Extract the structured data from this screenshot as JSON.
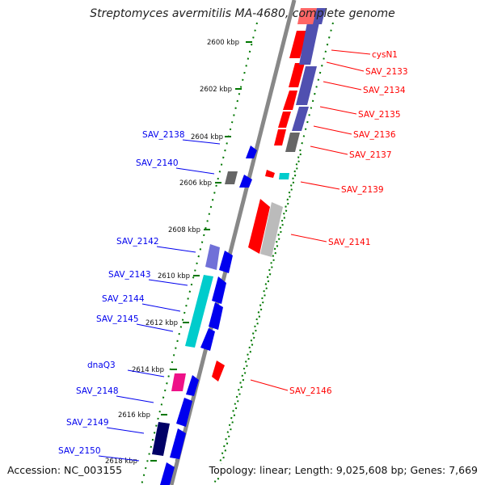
{
  "title": "Streptomyces avermitilis MA-4680, complete genome",
  "accession": "Accession: NC_003155",
  "summary": "Topology: linear; Length: 9,025,608 bp; Genes: 7,669",
  "colors": {
    "red": "#ff0000",
    "blue": "#0000ee",
    "slate_blue": "#5050b0",
    "light_slate_blue": "#7070d8",
    "navy": "#000066",
    "cyan": "#00cccc",
    "gray": "#666666",
    "light_gray": "#bbbbbb",
    "magenta": "#ee1188",
    "backbone": "#888888",
    "green_dotted": "#007700"
  },
  "ticks": [
    {
      "label": "2600 kbp"
    },
    {
      "label": "2602 kbp"
    },
    {
      "label": "2604 kbp"
    },
    {
      "label": "2606 kbp"
    },
    {
      "label": "2608 kbp"
    },
    {
      "label": "2610 kbp"
    },
    {
      "label": "2612 kbp"
    },
    {
      "label": "2614 kbp"
    },
    {
      "label": "2616 kbp"
    },
    {
      "label": "2618 kbp"
    }
  ],
  "labels_right": [
    {
      "text": "cysN1",
      "color": "red"
    },
    {
      "text": "SAV_2133",
      "color": "red"
    },
    {
      "text": "SAV_2134",
      "color": "red"
    },
    {
      "text": "SAV_2135",
      "color": "red"
    },
    {
      "text": "SAV_2136",
      "color": "red"
    },
    {
      "text": "SAV_2137",
      "color": "red"
    },
    {
      "text": "SAV_2139",
      "color": "red"
    },
    {
      "text": "SAV_2141",
      "color": "red"
    },
    {
      "text": "SAV_2146",
      "color": "red"
    }
  ],
  "labels_left": [
    {
      "text": "SAV_2138",
      "color": "blue"
    },
    {
      "text": "SAV_2140",
      "color": "blue"
    },
    {
      "text": "SAV_2142",
      "color": "blue"
    },
    {
      "text": "SAV_2143",
      "color": "blue"
    },
    {
      "text": "SAV_2144",
      "color": "blue"
    },
    {
      "text": "SAV_2145",
      "color": "blue"
    },
    {
      "text": "dnaQ3",
      "color": "blue"
    },
    {
      "text": "SAV_2148",
      "color": "blue"
    },
    {
      "text": "SAV_2149",
      "color": "blue"
    },
    {
      "text": "SAV_2150",
      "color": "blue"
    }
  ]
}
